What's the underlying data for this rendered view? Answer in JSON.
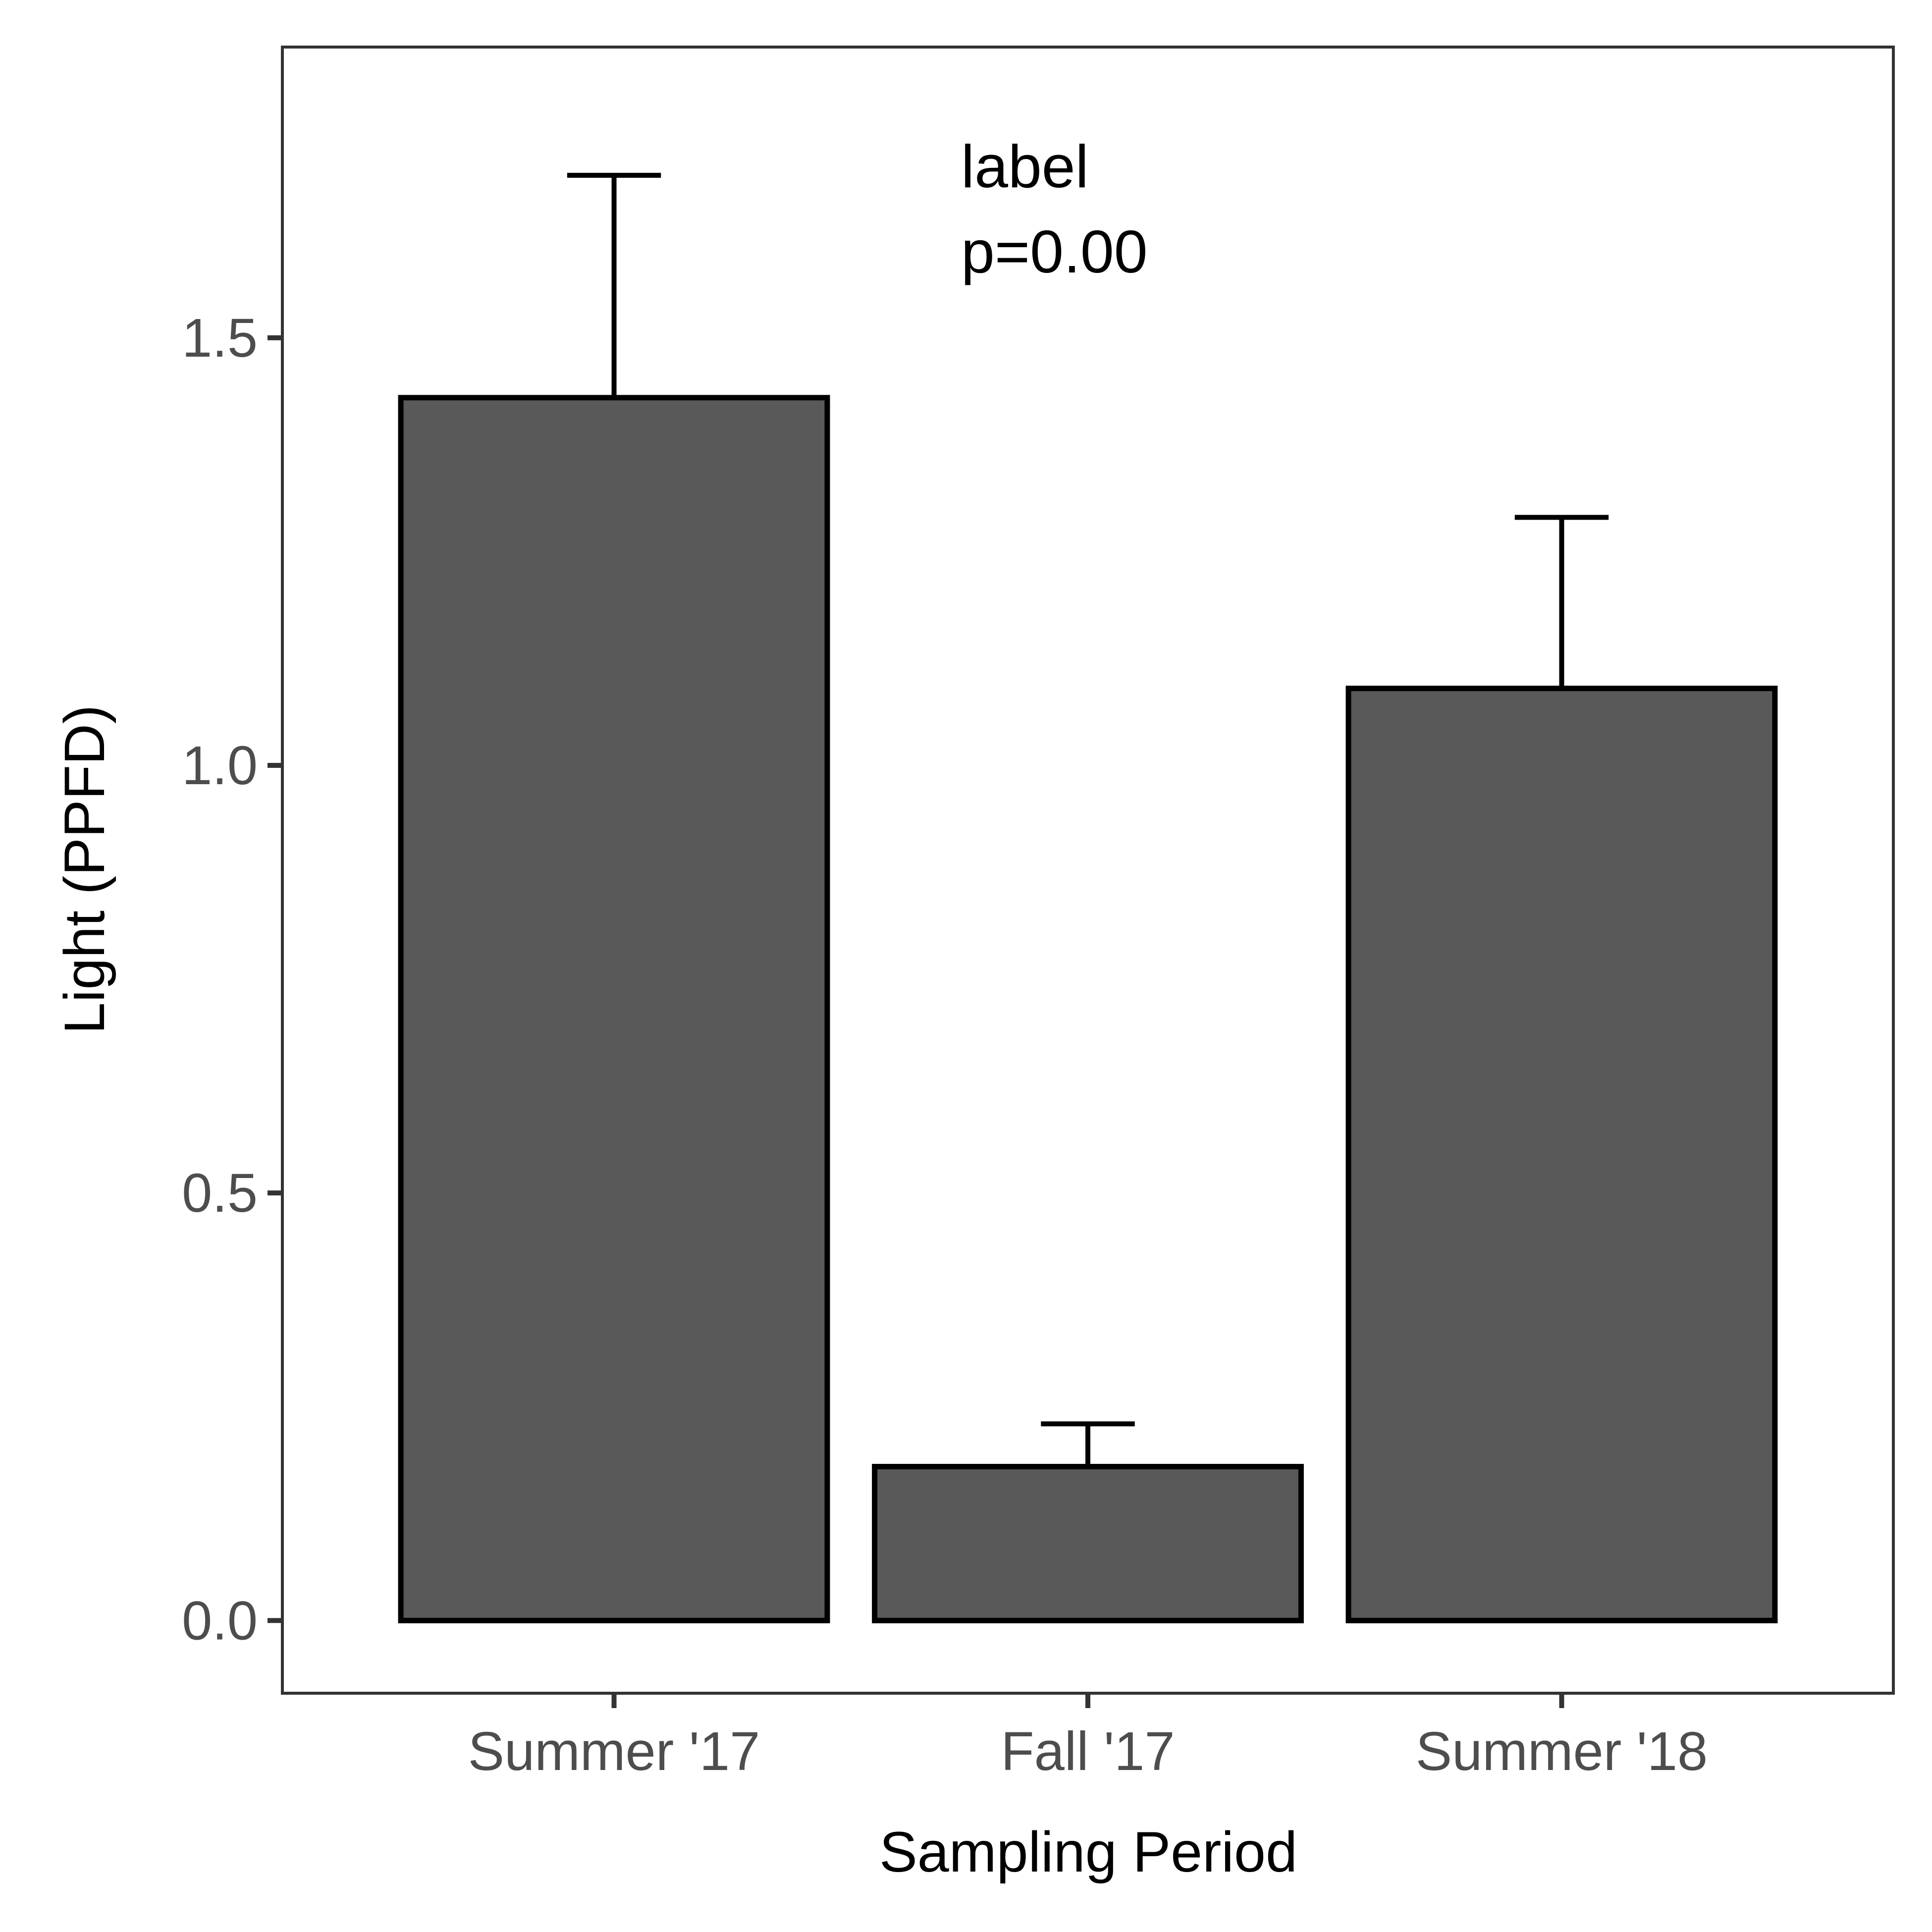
{
  "chart_data": {
    "type": "bar",
    "categories": [
      "Summer '17",
      "Fall '17",
      "Summer '18"
    ],
    "values": [
      1.43,
      0.18,
      1.09
    ],
    "error_upper": [
      1.69,
      0.23,
      1.29
    ],
    "xlabel": "Sampling Period",
    "ylabel": "Light (PPFD)",
    "ylim": [
      -0.085,
      1.84
    ],
    "yticks": [
      0.0,
      0.5,
      1.0,
      1.5
    ],
    "ytick_labels": [
      "0.0",
      "0.5",
      "1.0",
      "1.5"
    ],
    "annotation": [
      "label",
      "p=0.00"
    ],
    "grid": false,
    "legend": "none",
    "colors": {
      "bar_fill": "#595959",
      "bar_stroke": "#000000",
      "panel_border": "#333333",
      "tick_text": "#4d4d4d"
    }
  }
}
